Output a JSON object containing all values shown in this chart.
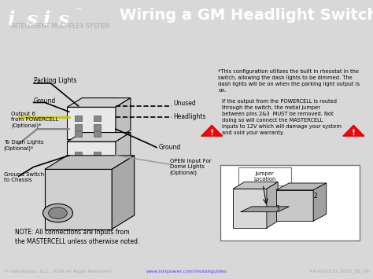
{
  "title": "Wiring a GM Headlight Switch",
  "bg_color": "#d8d8d8",
  "header_bg": "#1a1a1a",
  "header_text_color": "#ffffff",
  "footer_bg": "#1a1a1a",
  "footer_text_color": "#cccccc",
  "footer_left": "© Infinitybox, LLC. 2009 All Right Reserved",
  "footer_center": "www.isispower.com/installguides",
  "footer_right": "AA-ISIS-032 2010_08_29",
  "isis_subtitle": "INTELLIGENT MULTIPLEX SYSTEM",
  "note_text": "NOTE: All connections are inputs from\nthe MASTERCELL unless otherwise noted.",
  "warning_text_top": "*This configuration utilizes the built in rheostat in the\nswitch, allowing the dash lights to be dimmed. The\ndash lights will be on when the parking light output is\non.",
  "warning_text_bot": "If the output from the POWERCELL is routed\nthrough the switch, the metal jumper\nbetween pins 2&3  MUST be removed. Not\ndoing so will connect the MASTERCELL\ninputs to 12V which will damage your system\nand void your warranty.",
  "jumper_label": "Jumper\nLocation",
  "pin2_label": "2",
  "pin3_label": "3"
}
